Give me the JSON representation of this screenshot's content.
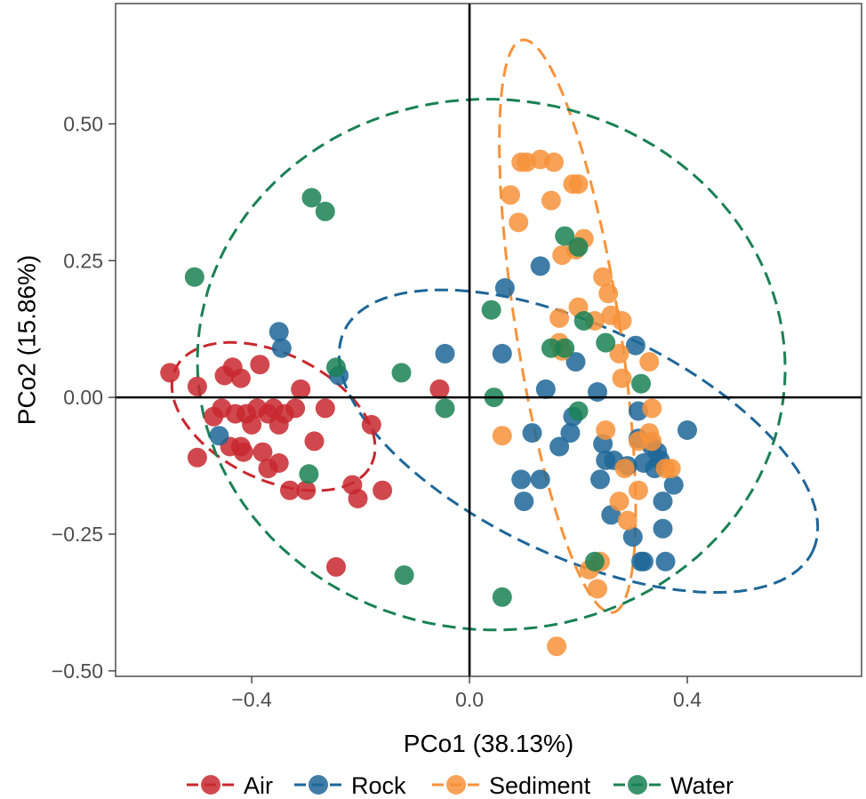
{
  "chart_data": {
    "type": "scatter",
    "title": "",
    "xlabel": "PCo1 (38.13%)",
    "ylabel": "PCo2 (15.86%)",
    "xlim": [
      -0.65,
      0.72
    ],
    "ylim": [
      -0.51,
      0.72
    ],
    "x_ticks": [
      -0.4,
      0.0,
      0.4
    ],
    "x_tick_labels": [
      "−0.4",
      "0.0",
      "0.4"
    ],
    "y_ticks": [
      0.5,
      0.25,
      0.0,
      -0.25,
      -0.5
    ],
    "y_tick_labels": [
      "0.50",
      "0.25",
      "0.00",
      "−0.25",
      "−0.50"
    ],
    "grid": false,
    "reference_lines": {
      "x": 0,
      "y": 0
    },
    "legend_position": "bottom",
    "series": [
      {
        "name": "Air",
        "color": "#C8282E",
        "points": [
          [
            -0.55,
            0.045
          ],
          [
            -0.5,
            0.02
          ],
          [
            -0.5,
            -0.11
          ],
          [
            -0.47,
            -0.035
          ],
          [
            -0.455,
            -0.02
          ],
          [
            -0.45,
            0.04
          ],
          [
            -0.435,
            0.055
          ],
          [
            -0.42,
            0.035
          ],
          [
            -0.43,
            -0.03
          ],
          [
            -0.44,
            -0.09
          ],
          [
            -0.42,
            -0.09
          ],
          [
            -0.41,
            -0.03
          ],
          [
            -0.39,
            -0.02
          ],
          [
            -0.4,
            -0.05
          ],
          [
            -0.385,
            0.06
          ],
          [
            -0.37,
            -0.03
          ],
          [
            -0.36,
            -0.02
          ],
          [
            -0.35,
            -0.05
          ],
          [
            -0.34,
            -0.03
          ],
          [
            -0.32,
            -0.02
          ],
          [
            -0.31,
            0.015
          ],
          [
            -0.38,
            -0.1
          ],
          [
            -0.37,
            -0.13
          ],
          [
            -0.35,
            -0.12
          ],
          [
            -0.33,
            -0.17
          ],
          [
            -0.3,
            -0.17
          ],
          [
            -0.285,
            -0.08
          ],
          [
            -0.265,
            -0.02
          ],
          [
            -0.415,
            -0.1
          ],
          [
            -0.215,
            -0.16
          ],
          [
            -0.205,
            -0.185
          ],
          [
            -0.18,
            -0.05
          ],
          [
            -0.16,
            -0.17
          ],
          [
            -0.055,
            0.015
          ],
          [
            -0.245,
            -0.31
          ]
        ]
      },
      {
        "name": "Rock",
        "color": "#1D6698",
        "points": [
          [
            -0.35,
            0.12
          ],
          [
            -0.345,
            0.09
          ],
          [
            -0.24,
            0.04
          ],
          [
            -0.46,
            -0.07
          ],
          [
            -0.045,
            0.08
          ],
          [
            0.065,
            0.2
          ],
          [
            0.06,
            0.08
          ],
          [
            0.13,
            0.24
          ],
          [
            0.14,
            0.015
          ],
          [
            0.115,
            -0.065
          ],
          [
            0.13,
            -0.15
          ],
          [
            0.095,
            -0.15
          ],
          [
            0.1,
            -0.19
          ],
          [
            0.165,
            -0.09
          ],
          [
            0.185,
            -0.065
          ],
          [
            0.19,
            -0.035
          ],
          [
            0.195,
            0.065
          ],
          [
            0.235,
            0.01
          ],
          [
            0.24,
            -0.15
          ],
          [
            0.245,
            -0.085
          ],
          [
            0.25,
            -0.115
          ],
          [
            0.26,
            -0.215
          ],
          [
            0.265,
            -0.115
          ],
          [
            0.29,
            -0.125
          ],
          [
            0.3,
            -0.255
          ],
          [
            0.305,
            0.095
          ],
          [
            0.31,
            -0.025
          ],
          [
            0.31,
            -0.075
          ],
          [
            0.32,
            -0.3
          ],
          [
            0.32,
            -0.12
          ],
          [
            0.335,
            -0.09
          ],
          [
            0.34,
            -0.13
          ],
          [
            0.345,
            -0.1
          ],
          [
            0.35,
            -0.115
          ],
          [
            0.355,
            -0.19
          ],
          [
            0.355,
            -0.24
          ],
          [
            0.36,
            -0.3
          ],
          [
            0.375,
            -0.16
          ],
          [
            0.4,
            -0.06
          ],
          [
            0.315,
            -0.3
          ]
        ]
      },
      {
        "name": "Sediment",
        "color": "#F7923A",
        "points": [
          [
            0.095,
            0.43
          ],
          [
            0.105,
            0.43
          ],
          [
            0.13,
            0.435
          ],
          [
            0.155,
            0.43
          ],
          [
            0.19,
            0.39
          ],
          [
            0.2,
            0.39
          ],
          [
            0.075,
            0.37
          ],
          [
            0.09,
            0.32
          ],
          [
            0.15,
            0.36
          ],
          [
            0.21,
            0.29
          ],
          [
            0.17,
            0.26
          ],
          [
            0.195,
            0.27
          ],
          [
            0.245,
            0.22
          ],
          [
            0.255,
            0.19
          ],
          [
            0.2,
            0.165
          ],
          [
            0.26,
            0.15
          ],
          [
            0.165,
            0.145
          ],
          [
            0.165,
            0.1
          ],
          [
            0.17,
            0.085
          ],
          [
            0.23,
            0.14
          ],
          [
            0.28,
            0.14
          ],
          [
            0.275,
            0.08
          ],
          [
            0.33,
            0.065
          ],
          [
            0.28,
            0.035
          ],
          [
            0.06,
            -0.07
          ],
          [
            0.25,
            -0.06
          ],
          [
            0.285,
            -0.13
          ],
          [
            0.31,
            -0.08
          ],
          [
            0.31,
            -0.17
          ],
          [
            0.33,
            -0.065
          ],
          [
            0.335,
            -0.02
          ],
          [
            0.335,
            -0.08
          ],
          [
            0.36,
            -0.13
          ],
          [
            0.37,
            -0.13
          ],
          [
            0.275,
            -0.19
          ],
          [
            0.29,
            -0.225
          ],
          [
            0.24,
            -0.3
          ],
          [
            0.235,
            -0.35
          ],
          [
            0.22,
            -0.315
          ],
          [
            0.16,
            -0.455
          ]
        ]
      },
      {
        "name": "Water",
        "color": "#1A8154",
        "points": [
          [
            -0.505,
            0.22
          ],
          [
            -0.29,
            0.365
          ],
          [
            -0.265,
            0.34
          ],
          [
            -0.245,
            0.055
          ],
          [
            -0.125,
            0.045
          ],
          [
            -0.045,
            -0.02
          ],
          [
            -0.295,
            -0.14
          ],
          [
            -0.12,
            -0.325
          ],
          [
            0.04,
            0.16
          ],
          [
            0.045,
            0.0
          ],
          [
            0.06,
            -0.365
          ],
          [
            0.15,
            0.09
          ],
          [
            0.175,
            0.09
          ],
          [
            0.175,
            0.295
          ],
          [
            0.2,
            0.275
          ],
          [
            0.21,
            0.14
          ],
          [
            0.2,
            -0.025
          ],
          [
            0.23,
            -0.3
          ],
          [
            0.25,
            0.1
          ],
          [
            0.315,
            0.025
          ]
        ]
      }
    ],
    "ellipses": [
      {
        "name": "Air",
        "color": "#C8282E",
        "center": [
          -0.36,
          -0.035
        ],
        "radii": [
          0.2,
          0.115
        ],
        "angle_deg": -26
      },
      {
        "name": "Rock",
        "color": "#1D6698",
        "center": [
          0.2,
          -0.08
        ],
        "radii": [
          0.475,
          0.21
        ],
        "angle_deg": -25
      },
      {
        "name": "Sediment",
        "color": "#F7923A",
        "center": [
          0.18,
          0.13
        ],
        "radii": [
          0.53,
          0.095
        ],
        "angle_deg": -81
      },
      {
        "name": "Water",
        "color": "#1A8154",
        "center": [
          0.04,
          0.06
        ],
        "radii": [
          0.54,
          0.485
        ],
        "angle_deg": -4
      }
    ]
  }
}
